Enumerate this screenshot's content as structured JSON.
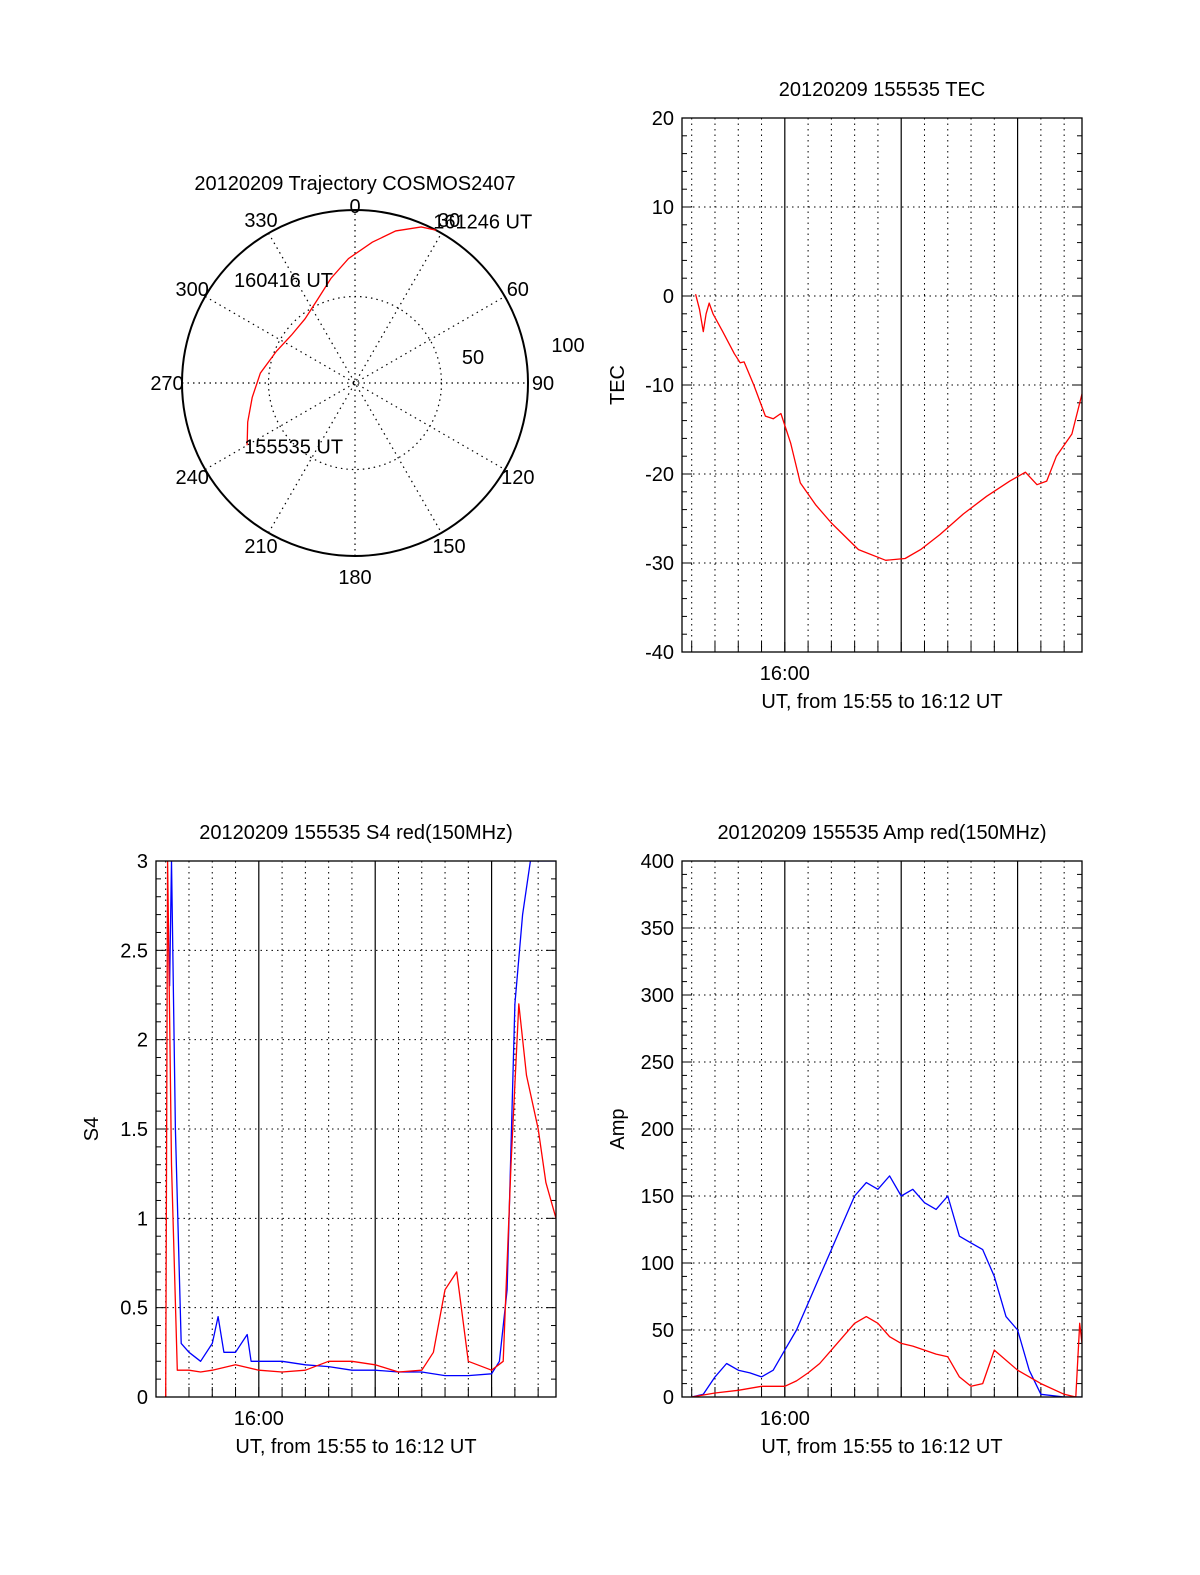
{
  "colors": {
    "red": "#ff0000",
    "blue": "#0000ff",
    "axis": "#000000",
    "grid": "#000000"
  },
  "chart_data": [
    {
      "type": "polar",
      "title": "20120209 Trajectory COSMOS2407",
      "angle_labels": [
        "0",
        "30",
        "60",
        "90",
        "120",
        "150",
        "180",
        "210",
        "240",
        "270",
        "300",
        "330"
      ],
      "radial_labels": [
        "50",
        "100"
      ],
      "rlim": [
        0,
        100
      ],
      "grid": true,
      "series": [
        {
          "color": "#ff0000",
          "points": [
            {
              "az": 240,
              "r": 72
            },
            {
              "az": 250,
              "r": 66
            },
            {
              "az": 262,
              "r": 60
            },
            {
              "az": 276,
              "r": 55
            },
            {
              "az": 292,
              "r": 49
            },
            {
              "az": 307,
              "r": 46
            },
            {
              "az": 322,
              "r": 47
            },
            {
              "az": 336,
              "r": 53
            },
            {
              "az": 347,
              "r": 62
            },
            {
              "az": 357,
              "r": 72
            },
            {
              "az": 7,
              "r": 82
            },
            {
              "az": 15,
              "r": 91
            },
            {
              "az": 23,
              "r": 98
            },
            {
              "az": 28,
              "r": 100
            }
          ]
        }
      ],
      "annotations": [
        {
          "text": "161246 UT",
          "az": 28,
          "r": 100
        },
        {
          "text": "160416 UT",
          "az": 310,
          "r": 46
        },
        {
          "text": "155535 UT",
          "az": 240,
          "r": 72
        }
      ]
    },
    {
      "type": "line",
      "title": "20120209 155535 TEC",
      "ylabel": "TEC",
      "xlabel": "UT, from 15:55 to 16:12 UT",
      "xlim": [
        "15:55:35",
        "16:12:46"
      ],
      "x_ticks": [
        "16:00"
      ],
      "ylim": [
        -40,
        20
      ],
      "y_ticks": [
        -40,
        -30,
        -20,
        -10,
        0,
        10,
        20
      ],
      "grid": true,
      "series": [
        {
          "color": "#ff0000",
          "x": [
            "15:56:10",
            "15:56:20",
            "15:56:30",
            "15:56:37",
            "15:56:45",
            "15:56:55",
            "15:57:20",
            "15:57:50",
            "15:58:05",
            "15:58:15",
            "15:58:40",
            "15:59:10",
            "15:59:30",
            "15:59:50",
            "16:00:15",
            "16:00:40",
            "16:01:20",
            "16:02:00",
            "16:03:10",
            "16:04:20",
            "16:05:10",
            "16:05:50",
            "16:06:40",
            "16:07:40",
            "16:08:40",
            "16:09:40",
            "16:10:20",
            "16:10:50",
            "16:11:15",
            "16:11:40",
            "16:12:20",
            "16:12:46"
          ],
          "y": [
            0.2,
            -1.5,
            -4,
            -2,
            -0.8,
            -2,
            -4,
            -6.5,
            -7.5,
            -7.4,
            -10,
            -13.5,
            -13.8,
            -13.2,
            -16.5,
            -21,
            -23.5,
            -25.5,
            -28.5,
            -29.7,
            -29.5,
            -28.5,
            -26.8,
            -24.5,
            -22.5,
            -20.8,
            -19.8,
            -21.2,
            -20.8,
            -18,
            -15.5,
            -11
          ]
        }
      ]
    },
    {
      "type": "line",
      "title": "20120209 155535 S4 red(150MHz)",
      "ylabel": "S4",
      "xlabel": "UT, from 15:55 to 16:12 UT",
      "xlim": [
        "15:55:35",
        "16:12:46"
      ],
      "x_ticks": [
        "16:00"
      ],
      "ylim": [
        0,
        3
      ],
      "y_ticks": [
        "0",
        "0.5",
        "1",
        "1.5",
        "2",
        "2.5",
        "3"
      ],
      "grid": true,
      "series": [
        {
          "color": "#0000ff",
          "x": [
            "15:56:10",
            "15:56:15",
            "15:56:25",
            "15:56:40",
            "15:57:00",
            "15:57:30",
            "15:58:00",
            "15:58:15",
            "15:58:30",
            "15:59:00",
            "15:59:30",
            "15:59:40",
            "16:00:00",
            "16:01:00",
            "16:02:00",
            "16:03:00",
            "16:04:00",
            "16:05:00",
            "16:06:00",
            "16:07:00",
            "16:08:00",
            "16:09:00",
            "16:10:00",
            "16:10:20",
            "16:10:40",
            "16:11:00",
            "16:11:20",
            "16:11:40",
            "16:12:00",
            "16:12:46"
          ],
          "y": [
            2.3,
            3,
            1.5,
            0.3,
            0.25,
            0.2,
            0.3,
            0.45,
            0.25,
            0.25,
            0.35,
            0.2,
            0.2,
            0.2,
            0.18,
            0.17,
            0.15,
            0.15,
            0.14,
            0.14,
            0.12,
            0.12,
            0.13,
            0.2,
            0.6,
            2.2,
            2.7,
            3,
            3,
            3
          ]
        },
        {
          "color": "#ff0000",
          "x": [
            "15:56:00",
            "15:56:05",
            "15:56:15",
            "15:56:30",
            "15:56:45",
            "15:57:00",
            "15:57:30",
            "15:58:00",
            "15:59:00",
            "16:00:00",
            "16:01:00",
            "16:02:00",
            "16:03:00",
            "16:04:00",
            "16:05:00",
            "16:06:00",
            "16:07:00",
            "16:07:30",
            "16:08:00",
            "16:08:30",
            "16:09:00",
            "16:10:00",
            "16:10:30",
            "16:10:50",
            "16:11:10",
            "16:11:30",
            "16:12:00",
            "16:12:20",
            "16:12:46"
          ],
          "y": [
            0,
            3,
            1.3,
            0.15,
            0.15,
            0.15,
            0.14,
            0.15,
            0.18,
            0.15,
            0.14,
            0.15,
            0.2,
            0.2,
            0.18,
            0.14,
            0.15,
            0.25,
            0.6,
            0.7,
            0.2,
            0.15,
            0.2,
            1.3,
            2.2,
            1.8,
            1.5,
            1.2,
            1.0
          ]
        }
      ]
    },
    {
      "type": "line",
      "title": "20120209 155535 Amp red(150MHz)",
      "ylabel": "Amp",
      "xlabel": "UT, from 15:55 to 16:12 UT",
      "xlim": [
        "15:55:35",
        "16:12:46"
      ],
      "x_ticks": [
        "16:00"
      ],
      "ylim": [
        0,
        400
      ],
      "y_ticks": [
        0,
        50,
        100,
        150,
        200,
        250,
        300,
        350,
        400
      ],
      "grid": true,
      "series": [
        {
          "color": "#0000ff",
          "x": [
            "15:56:00",
            "15:56:30",
            "15:57:00",
            "15:57:30",
            "15:58:00",
            "15:58:30",
            "15:59:00",
            "15:59:30",
            "16:00:00",
            "16:00:30",
            "16:01:00",
            "16:01:30",
            "16:02:00",
            "16:02:30",
            "16:03:00",
            "16:03:30",
            "16:04:00",
            "16:04:30",
            "16:05:00",
            "16:05:30",
            "16:06:00",
            "16:06:30",
            "16:07:00",
            "16:07:30",
            "16:08:00",
            "16:08:30",
            "16:09:00",
            "16:09:30",
            "16:10:00",
            "16:10:30",
            "16:11:00",
            "16:12:00",
            "16:12:46"
          ],
          "y": [
            0,
            2,
            15,
            25,
            20,
            18,
            15,
            20,
            35,
            50,
            70,
            90,
            110,
            130,
            150,
            160,
            155,
            165,
            150,
            155,
            145,
            140,
            150,
            120,
            115,
            110,
            90,
            60,
            50,
            20,
            2,
            0,
            0
          ]
        },
        {
          "color": "#ff0000",
          "x": [
            "15:56:00",
            "15:57:00",
            "15:58:00",
            "15:59:00",
            "16:00:00",
            "16:00:30",
            "16:01:00",
            "16:01:30",
            "16:02:00",
            "16:02:30",
            "16:03:00",
            "16:03:30",
            "16:04:00",
            "16:04:30",
            "16:05:00",
            "16:05:30",
            "16:06:00",
            "16:06:30",
            "16:07:00",
            "16:07:30",
            "16:08:00",
            "16:08:30",
            "16:09:00",
            "16:10:00",
            "16:11:00",
            "16:12:00",
            "16:12:30",
            "16:12:40",
            "16:12:46"
          ],
          "y": [
            0,
            3,
            5,
            8,
            8,
            12,
            18,
            25,
            35,
            45,
            55,
            60,
            55,
            45,
            40,
            38,
            35,
            32,
            30,
            15,
            8,
            10,
            35,
            20,
            10,
            2,
            0,
            55,
            40
          ]
        }
      ]
    }
  ]
}
